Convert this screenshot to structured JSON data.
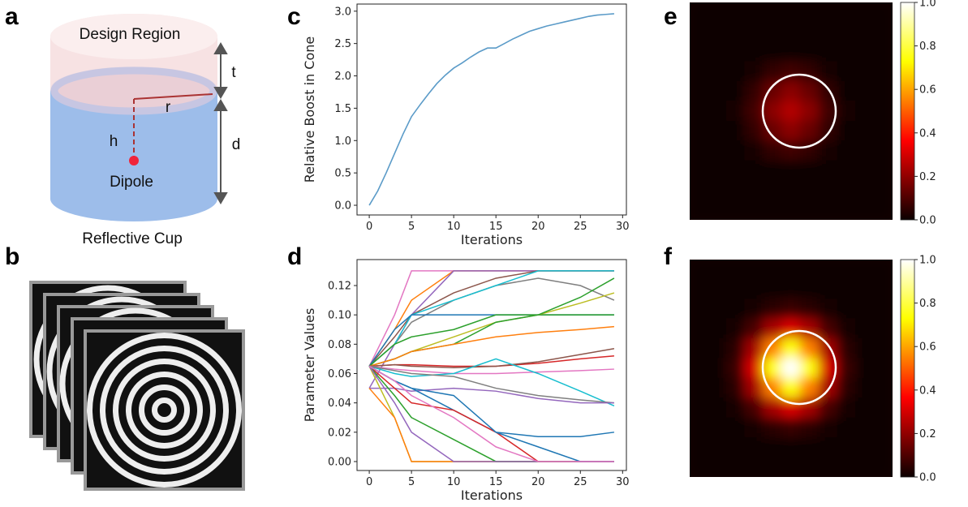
{
  "panel_labels": [
    "a",
    "b",
    "c",
    "d",
    "e",
    "f"
  ],
  "diagram": {
    "design_region": "Design Region",
    "t": "t",
    "r": "r",
    "h": "h",
    "d": "d",
    "dipole": "Dipole",
    "reflective_cup": "Reflective Cup"
  },
  "chart_data": [
    {
      "type": "line",
      "xlabel": "Iterations",
      "ylabel": "Relative Boost in Cone",
      "color": "#5b9bc8",
      "x": [
        0,
        1,
        2,
        3,
        4,
        5,
        6,
        7,
        8,
        9,
        10,
        11,
        12,
        13,
        14,
        15,
        16,
        17,
        18,
        19,
        20,
        21,
        22,
        23,
        24,
        25,
        26,
        27,
        28,
        29
      ],
      "values": [
        0,
        0.22,
        0.5,
        0.8,
        1.1,
        1.37,
        1.55,
        1.72,
        1.88,
        2.01,
        2.12,
        2.2,
        2.29,
        2.37,
        2.43,
        2.43,
        2.5,
        2.57,
        2.63,
        2.69,
        2.73,
        2.77,
        2.8,
        2.83,
        2.86,
        2.89,
        2.92,
        2.94,
        2.95,
        2.96
      ],
      "xlim": [
        -1.45,
        30.45
      ],
      "ylim": [
        -0.15,
        3.11
      ],
      "xticks": [
        0,
        5,
        10,
        15,
        20,
        25,
        30
      ],
      "yticks": [
        {
          "value": 0,
          "label": "0.0"
        },
        {
          "value": 0.5,
          "label": "0.5"
        },
        {
          "value": 1,
          "label": "1.0"
        },
        {
          "value": 1.5,
          "label": "1.5"
        },
        {
          "value": 2,
          "label": "2.0"
        },
        {
          "value": 2.5,
          "label": "2.5"
        },
        {
          "value": 3,
          "label": "3.0"
        }
      ]
    },
    {
      "type": "multiline",
      "xlabel": "Iterations",
      "ylabel": "Parameter Values",
      "x": [
        0,
        3,
        5,
        10,
        15,
        20,
        25,
        29
      ],
      "series": [
        {
          "color": "#e377c2",
          "values": [
            0.065,
            0.1,
            0.13,
            0.13,
            0.13,
            0.13,
            0.13,
            0.13
          ]
        },
        {
          "color": "#ff7f0e",
          "values": [
            0.065,
            0.09,
            0.11,
            0.13,
            0.13,
            0.13,
            0.13,
            0.13
          ]
        },
        {
          "color": "#9467bd",
          "values": [
            0.05,
            0.08,
            0.1,
            0.13,
            0.13,
            0.13,
            0.13,
            0.13
          ]
        },
        {
          "color": "#8c564b",
          "values": [
            0.065,
            0.085,
            0.1,
            0.115,
            0.125,
            0.13,
            0.13,
            0.13
          ]
        },
        {
          "color": "#7f7f7f",
          "values": [
            0.065,
            0.08,
            0.095,
            0.11,
            0.12,
            0.125,
            0.12,
            0.11
          ]
        },
        {
          "color": "#17becf",
          "values": [
            0.065,
            0.08,
            0.1,
            0.11,
            0.12,
            0.13,
            0.13,
            0.13
          ]
        },
        {
          "color": "#1f77b4",
          "values": [
            0.065,
            0.09,
            0.1,
            0.1,
            0.1,
            0.1,
            0.1,
            0.1
          ]
        },
        {
          "color": "#2ca02c",
          "values": [
            0.065,
            0.08,
            0.085,
            0.09,
            0.1,
            0.1,
            0.1,
            0.1
          ]
        },
        {
          "color": "#bcbd22",
          "values": [
            0.065,
            0.07,
            0.075,
            0.085,
            0.095,
            0.1,
            0.108,
            0.115
          ]
        },
        {
          "color": "#2ca02c",
          "values": [
            0.065,
            0.07,
            0.075,
            0.08,
            0.095,
            0.1,
            0.112,
            0.125
          ]
        },
        {
          "color": "#ff7f0e",
          "values": [
            0.065,
            0.07,
            0.075,
            0.08,
            0.085,
            0.088,
            0.09,
            0.092
          ]
        },
        {
          "color": "#d62728",
          "values": [
            0.065,
            0.066,
            0.066,
            0.065,
            0.065,
            0.067,
            0.07,
            0.072
          ]
        },
        {
          "color": "#8c564b",
          "values": [
            0.065,
            0.066,
            0.065,
            0.064,
            0.065,
            0.068,
            0.073,
            0.077
          ]
        },
        {
          "color": "#e377c2",
          "values": [
            0.065,
            0.063,
            0.062,
            0.06,
            0.06,
            0.061,
            0.062,
            0.063
          ]
        },
        {
          "color": "#17becf",
          "values": [
            0.065,
            0.06,
            0.058,
            0.06,
            0.07,
            0.06,
            0.048,
            0.038
          ]
        },
        {
          "color": "#7f7f7f",
          "values": [
            0.065,
            0.062,
            0.06,
            0.058,
            0.05,
            0.045,
            0.042,
            0.04
          ]
        },
        {
          "color": "#9467bd",
          "values": [
            0.05,
            0.05,
            0.048,
            0.05,
            0.048,
            0.043,
            0.04,
            0.04
          ]
        },
        {
          "color": "#1f77b4",
          "values": [
            0.065,
            0.055,
            0.05,
            0.035,
            0.02,
            0.017,
            0.017,
            0.02
          ]
        },
        {
          "color": "#d62728",
          "values": [
            0.065,
            0.05,
            0.04,
            0.035,
            0.02,
            0,
            0,
            0
          ]
        },
        {
          "color": "#bcbd22",
          "values": [
            0.065,
            0.03,
            0,
            0,
            0,
            0,
            0,
            0
          ]
        },
        {
          "color": "#ff7f0e",
          "values": [
            0.05,
            0.03,
            0,
            0,
            0,
            0,
            0,
            0
          ]
        },
        {
          "color": "#2ca02c",
          "values": [
            0.065,
            0.045,
            0.03,
            0.015,
            0,
            0,
            0,
            0
          ]
        },
        {
          "color": "#1f77b4",
          "values": [
            0.065,
            0.055,
            0.05,
            0.045,
            0.02,
            0.01,
            0,
            0
          ]
        },
        {
          "color": "#9467bd",
          "values": [
            0.065,
            0.04,
            0.02,
            0,
            0,
            0,
            0,
            0
          ]
        },
        {
          "color": "#e377c2",
          "values": [
            0.065,
            0.055,
            0.045,
            0.03,
            0.01,
            0,
            0,
            0
          ]
        }
      ],
      "xlim": [
        -1.45,
        30.45
      ],
      "ylim": [
        -0.0061,
        0.1377
      ],
      "xticks": [
        0,
        5,
        10,
        15,
        20,
        25,
        30
      ],
      "yticks": [
        {
          "value": 0,
          "label": "0.00"
        },
        {
          "value": 0.02,
          "label": "0.02"
        },
        {
          "value": 0.04,
          "label": "0.04"
        },
        {
          "value": 0.06,
          "label": "0.06"
        },
        {
          "value": 0.08,
          "label": "0.08"
        },
        {
          "value": 0.1,
          "label": "0.10"
        },
        {
          "value": 0.12,
          "label": "0.12"
        }
      ]
    },
    {
      "type": "heatmap",
      "colormap": "hot",
      "clim": [
        0,
        1
      ],
      "cticks": [
        {
          "value": 0,
          "label": "0.0"
        },
        {
          "value": 0.2,
          "label": "0.2"
        },
        {
          "value": 0.4,
          "label": "0.4"
        },
        {
          "value": 0.6,
          "label": "0.6"
        },
        {
          "value": 0.8,
          "label": "0.8"
        },
        {
          "value": 1,
          "label": "1.0"
        }
      ],
      "values": [
        [
          0,
          0,
          0,
          0,
          0,
          0,
          0,
          0,
          0,
          0,
          0
        ],
        [
          0,
          0,
          0,
          0,
          0,
          0,
          0,
          0,
          0,
          0,
          0
        ],
        [
          0,
          0,
          0,
          0,
          0.01,
          0.01,
          0.01,
          0,
          0,
          0,
          0
        ],
        [
          0,
          0,
          0.01,
          0.02,
          0.06,
          0.08,
          0.06,
          0.02,
          0.01,
          0,
          0
        ],
        [
          0,
          0,
          0.01,
          0.06,
          0.14,
          0.19,
          0.14,
          0.06,
          0.01,
          0,
          0
        ],
        [
          0,
          0,
          0.02,
          0.08,
          0.19,
          0.25,
          0.19,
          0.08,
          0.02,
          0,
          0
        ],
        [
          0,
          0,
          0.01,
          0.06,
          0.14,
          0.19,
          0.14,
          0.06,
          0.01,
          0,
          0
        ],
        [
          0,
          0,
          0.01,
          0.02,
          0.06,
          0.08,
          0.06,
          0.02,
          0.01,
          0,
          0
        ],
        [
          0,
          0,
          0,
          0,
          0.01,
          0.01,
          0.01,
          0,
          0,
          0,
          0
        ],
        [
          0,
          0,
          0,
          0,
          0,
          0,
          0,
          0,
          0,
          0,
          0
        ],
        [
          0,
          0,
          0,
          0,
          0,
          0,
          0,
          0,
          0,
          0,
          0
        ]
      ]
    },
    {
      "type": "heatmap",
      "colormap": "hot",
      "clim": [
        0,
        1
      ],
      "cticks": [
        {
          "value": 0,
          "label": "0.0"
        },
        {
          "value": 0.2,
          "label": "0.2"
        },
        {
          "value": 0.4,
          "label": "0.4"
        },
        {
          "value": 0.6,
          "label": "0.6"
        },
        {
          "value": 0.8,
          "label": "0.8"
        },
        {
          "value": 1,
          "label": "1.0"
        }
      ],
      "values": [
        [
          0,
          0,
          0,
          0,
          0,
          0,
          0,
          0,
          0,
          0,
          0
        ],
        [
          0,
          0,
          0,
          0,
          0.01,
          0.01,
          0.01,
          0,
          0,
          0,
          0
        ],
        [
          0,
          0,
          0,
          0.02,
          0.05,
          0.07,
          0.05,
          0.02,
          0,
          0,
          0
        ],
        [
          0,
          0,
          0.02,
          0.09,
          0.23,
          0.31,
          0.23,
          0.09,
          0.02,
          0,
          0
        ],
        [
          0,
          0.01,
          0.05,
          0.23,
          0.55,
          0.74,
          0.55,
          0.23,
          0.05,
          0.01,
          0
        ],
        [
          0,
          0.01,
          0.07,
          0.31,
          0.74,
          1,
          0.74,
          0.31,
          0.07,
          0.01,
          0
        ],
        [
          0,
          0.01,
          0.05,
          0.23,
          0.55,
          0.74,
          0.55,
          0.23,
          0.05,
          0.01,
          0
        ],
        [
          0,
          0,
          0.02,
          0.09,
          0.23,
          0.31,
          0.23,
          0.09,
          0.02,
          0,
          0
        ],
        [
          0,
          0,
          0,
          0.02,
          0.05,
          0.07,
          0.05,
          0.02,
          0,
          0,
          0
        ],
        [
          0,
          0,
          0,
          0,
          0.01,
          0.01,
          0.01,
          0,
          0,
          0,
          0
        ],
        [
          0,
          0,
          0,
          0,
          0,
          0,
          0,
          0,
          0,
          0,
          0
        ]
      ]
    }
  ]
}
